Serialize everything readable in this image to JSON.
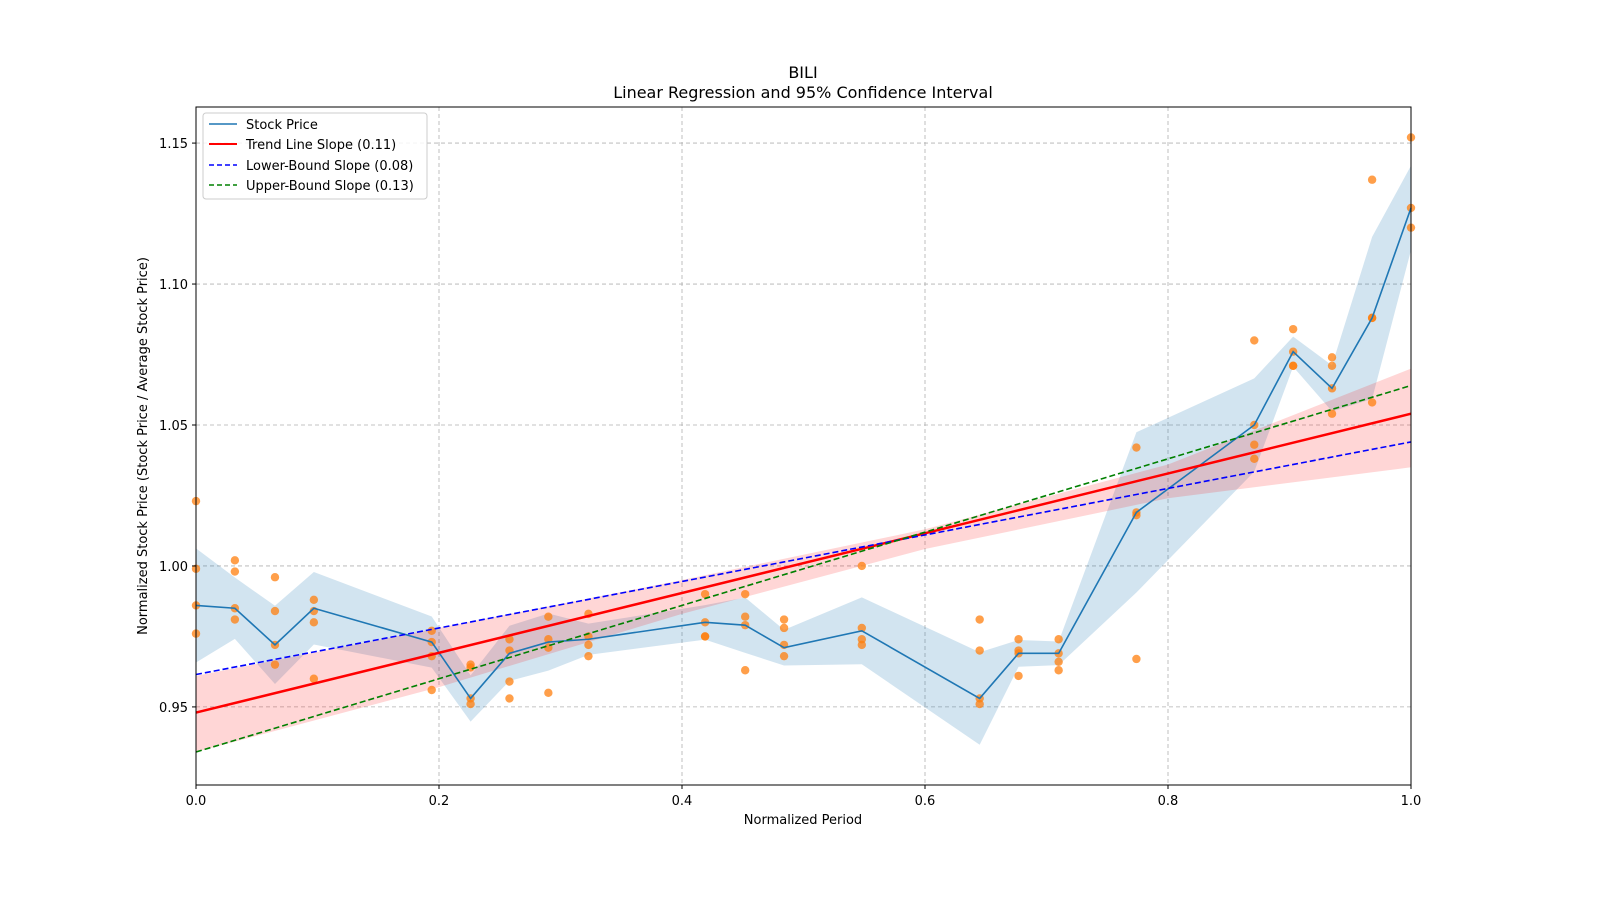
{
  "chart_data": {
    "type": "line",
    "title": "BILI",
    "subtitle": "Linear Regression and 95% Confidence Interval",
    "xlabel": "Normalized Period",
    "ylabel": "Normalized Stock Price (Stock Price / Average Stock Price)",
    "xlim": [
      0,
      1
    ],
    "ylim": [
      0.9223,
      1.1628
    ],
    "xticks": [
      "0.0",
      "0.2",
      "0.4",
      "0.6",
      "0.8",
      "1.0"
    ],
    "yticks": [
      "0.95",
      "1.00",
      "1.05",
      "1.10",
      "1.15"
    ],
    "grid": true,
    "legend_position": "top-left",
    "colors": {
      "stock": "#1f77b4",
      "band": "#1f77b4",
      "points": "#ff7f0e",
      "trend": "#ff0000",
      "ci": "#ff9da5",
      "lower": "#0000ff",
      "upper": "#008000"
    },
    "stock_price": {
      "name": "Stock Price",
      "x": [
        0,
        0.032,
        0.065,
        0.097,
        0.194,
        0.226,
        0.258,
        0.29,
        0.323,
        0.419,
        0.452,
        0.484,
        0.548,
        0.645,
        0.677,
        0.71,
        0.774,
        0.871,
        0.903,
        0.935,
        0.968,
        1.0
      ],
      "y": [
        0.986,
        0.985,
        0.972,
        0.985,
        0.973,
        0.953,
        0.969,
        0.973,
        0.974,
        0.98,
        0.979,
        0.971,
        0.977,
        0.953,
        0.969,
        0.969,
        1.019,
        1.05,
        1.076,
        1.063,
        1.088,
        1.127
      ]
    },
    "scatter": [
      [
        1.023,
        0.999,
        0.986,
        0.976
      ],
      [
        1.002,
        0.998,
        0.985,
        0.981
      ],
      [
        0.996,
        0.984,
        0.972,
        0.965
      ],
      [
        0.988,
        0.984,
        0.98,
        0.96
      ],
      [
        0.977,
        0.973,
        0.968,
        0.956
      ],
      [
        0.965,
        0.964,
        0.953,
        0.951
      ],
      [
        0.974,
        0.97,
        0.959,
        0.953
      ],
      [
        0.982,
        0.974,
        0.971,
        0.955
      ],
      [
        0.983,
        0.975,
        0.972,
        0.968
      ],
      [
        0.99,
        0.98,
        0.975,
        0.975
      ],
      [
        0.99,
        0.982,
        0.979,
        0.963
      ],
      [
        0.981,
        0.978,
        0.972,
        0.968
      ],
      [
        1.0,
        0.978,
        0.974,
        0.972
      ],
      [
        0.981,
        0.97,
        0.953,
        0.951
      ],
      [
        0.974,
        0.97,
        0.969,
        0.961
      ],
      [
        0.974,
        0.969,
        0.966,
        0.963
      ],
      [
        1.042,
        1.019,
        1.018,
        0.967
      ],
      [
        1.08,
        1.05,
        1.043,
        1.038
      ],
      [
        1.084,
        1.076,
        1.071,
        1.071
      ],
      [
        1.074,
        1.071,
        1.063,
        1.054
      ],
      [
        1.137,
        1.088,
        1.088,
        1.058
      ],
      [
        1.152,
        1.127,
        1.12
      ]
    ],
    "trend": {
      "name": "Trend Line Slope (0.11)",
      "y0": 0.948,
      "y1": 1.054
    },
    "lower_bound": {
      "name": "Lower-Bound Slope (0.08)",
      "y0": 0.9615,
      "y1": 1.044
    },
    "upper_bound": {
      "name": "Upper-Bound Slope (0.13)",
      "y0": 0.934,
      "y1": 1.064
    },
    "confidence_band": {
      "x": [
        0,
        0.2,
        0.4,
        0.6,
        0.8,
        1.0
      ],
      "lower": [
        0.934,
        0.957,
        0.983,
        1.006,
        1.024,
        1.035
      ],
      "upper": [
        0.961,
        0.978,
        0.995,
        1.013,
        1.036,
        1.07
      ]
    }
  }
}
